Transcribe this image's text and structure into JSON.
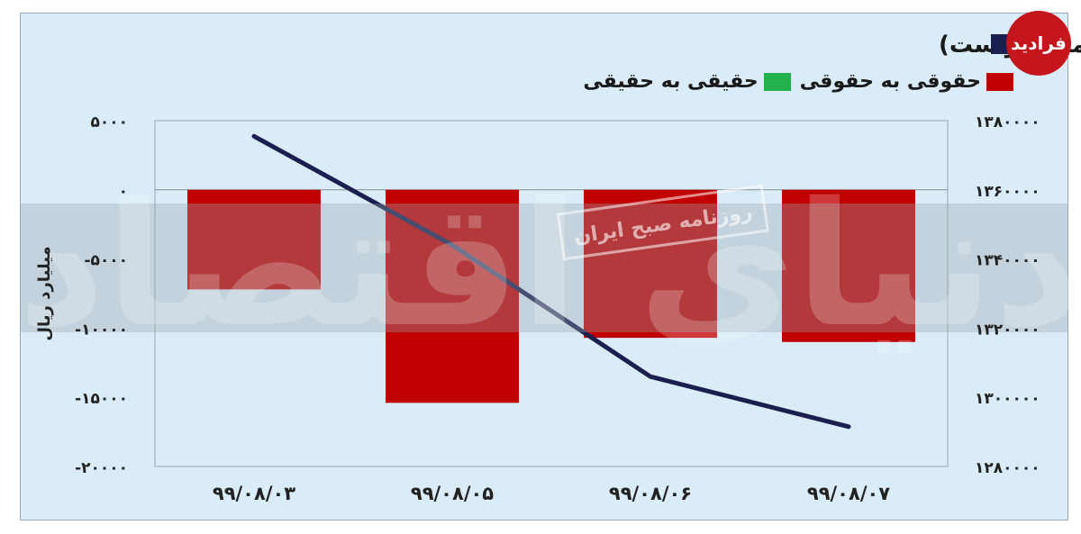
{
  "brand": {
    "logo_text": "فرادید"
  },
  "watermark": {
    "big_text": "دنیای اقتصاد",
    "stamp_text": "روزنامه صبح ایران"
  },
  "colors": {
    "background": "#d9ecf7",
    "index_line": "#1b1f4f",
    "legal_to_legal": "#c00000",
    "real_to_legal": "#22b14c",
    "watermark_band": "#9aa3ab"
  },
  "chart_data": {
    "type": "bar",
    "title": "تغییر مالکیت میان سهامداران (محور چپ) و شاخص کل (محور راست)",
    "legend_placement": "top",
    "categories": [
      "۹۹/۰۸/۰۳",
      "۹۹/۰۸/۰۵",
      "۹۹/۰۸/۰۶",
      "۹۹/۰۸/۰۷"
    ],
    "series": [
      {
        "name": "حقوقی به حقوقی",
        "type": "bar",
        "axis": "left",
        "color": "#c00000",
        "values": [
          -7200,
          -15400,
          -10700,
          -11000
        ]
      },
      {
        "name": "حقیقی به حقیقی",
        "type": "bar",
        "axis": "left",
        "color": "#22b14c",
        "values": [
          0,
          0,
          0,
          0
        ]
      },
      {
        "name": "شاخص کل",
        "type": "line",
        "axis": "right",
        "color": "#1b1f4f",
        "values": [
          1375500,
          1344000,
          1306000,
          1291500
        ]
      }
    ],
    "ylabel": "میلیارد ریال",
    "y_left": {
      "min": -20000,
      "max": 5000,
      "ticks": [
        5000,
        0,
        -5000,
        -10000,
        -15000,
        -20000
      ],
      "tick_labels": [
        "۵۰۰۰",
        "۰",
        "-۵۰۰۰",
        "-۱۰۰۰۰",
        "-۱۵۰۰۰",
        "-۲۰۰۰۰"
      ]
    },
    "y_right": {
      "min": 1280000,
      "max": 1380000,
      "ticks": [
        1380000,
        1360000,
        1340000,
        1320000,
        1300000,
        1280000
      ],
      "tick_labels": [
        "۱۳۸۰۰۰۰",
        "۱۳۶۰۰۰۰",
        "۱۳۴۰۰۰۰",
        "۱۳۲۰۰۰۰",
        "۱۳۰۰۰۰۰",
        "۱۲۸۰۰۰۰"
      ]
    },
    "grid": false
  }
}
